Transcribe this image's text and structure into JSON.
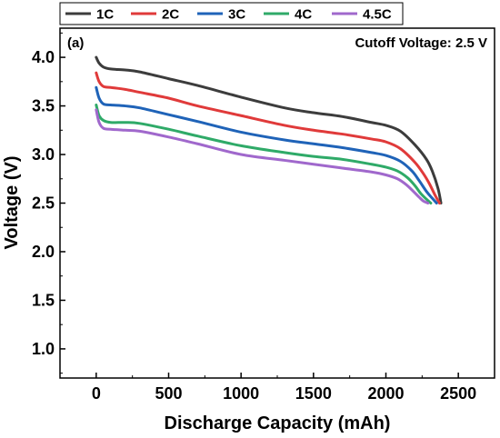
{
  "chart_data": {
    "type": "line",
    "panel_label": "(a)",
    "annotation": "Cutoff Voltage: 2.5 V",
    "xlabel": "Discharge Capacity (mAh)",
    "ylabel": "Voltage (V)",
    "xlim": [
      -250,
      2750
    ],
    "ylim": [
      0.7,
      4.3
    ],
    "xticks": [
      0,
      500,
      1000,
      1500,
      2000,
      2500
    ],
    "yticks": [
      1.0,
      1.5,
      2.0,
      2.5,
      3.0,
      3.5,
      4.0
    ],
    "ytick_labels": [
      "1.0",
      "1.5",
      "2.0",
      "2.5",
      "3.0",
      "3.5",
      "4.0"
    ],
    "grid": false,
    "legend_position": "top",
    "series": [
      {
        "name": "1C",
        "color": "#3c3c3c",
        "x": [
          0,
          20,
          50,
          100,
          200,
          300,
          500,
          700,
          1000,
          1300,
          1500,
          1700,
          1900,
          2000,
          2100,
          2200,
          2280,
          2320,
          2360,
          2380
        ],
        "y": [
          4.0,
          3.94,
          3.9,
          3.88,
          3.87,
          3.85,
          3.78,
          3.71,
          3.59,
          3.48,
          3.43,
          3.39,
          3.33,
          3.3,
          3.24,
          3.1,
          2.95,
          2.83,
          2.65,
          2.5
        ]
      },
      {
        "name": "2C",
        "color": "#e03a3a",
        "x": [
          0,
          20,
          50,
          100,
          200,
          300,
          500,
          700,
          1000,
          1300,
          1500,
          1700,
          1900,
          2000,
          2100,
          2200,
          2260,
          2300,
          2340,
          2370
        ],
        "y": [
          3.84,
          3.75,
          3.7,
          3.69,
          3.67,
          3.64,
          3.58,
          3.5,
          3.4,
          3.3,
          3.25,
          3.21,
          3.16,
          3.13,
          3.06,
          2.92,
          2.8,
          2.7,
          2.58,
          2.5
        ]
      },
      {
        "name": "3C",
        "color": "#1f63b8",
        "x": [
          0,
          20,
          50,
          100,
          200,
          300,
          500,
          700,
          1000,
          1300,
          1500,
          1700,
          1900,
          2000,
          2100,
          2180,
          2230,
          2280,
          2320,
          2350
        ],
        "y": [
          3.69,
          3.58,
          3.52,
          3.51,
          3.5,
          3.48,
          3.41,
          3.34,
          3.23,
          3.15,
          3.11,
          3.07,
          3.02,
          2.99,
          2.93,
          2.83,
          2.73,
          2.62,
          2.55,
          2.5
        ]
      },
      {
        "name": "4C",
        "color": "#2faa68",
        "x": [
          0,
          20,
          50,
          100,
          200,
          300,
          500,
          700,
          1000,
          1300,
          1500,
          1700,
          1900,
          2000,
          2080,
          2150,
          2200,
          2240,
          2280,
          2310
        ],
        "y": [
          3.51,
          3.4,
          3.35,
          3.33,
          3.33,
          3.32,
          3.26,
          3.19,
          3.09,
          3.02,
          2.98,
          2.95,
          2.9,
          2.87,
          2.83,
          2.76,
          2.68,
          2.6,
          2.54,
          2.5
        ]
      },
      {
        "name": "4.5C",
        "color": "#a068cc",
        "x": [
          0,
          20,
          50,
          100,
          200,
          300,
          500,
          700,
          1000,
          1300,
          1500,
          1700,
          1900,
          2000,
          2080,
          2140,
          2190,
          2230,
          2260,
          2290
        ],
        "y": [
          3.46,
          3.33,
          3.27,
          3.26,
          3.25,
          3.24,
          3.18,
          3.11,
          3.0,
          2.94,
          2.9,
          2.86,
          2.82,
          2.79,
          2.75,
          2.69,
          2.62,
          2.56,
          2.52,
          2.5
        ]
      }
    ]
  }
}
